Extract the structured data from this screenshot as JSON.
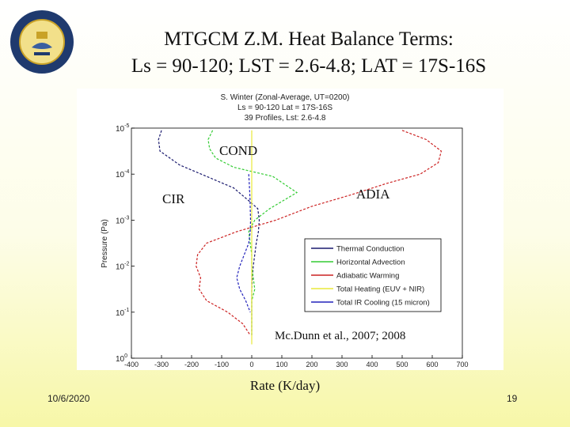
{
  "slide": {
    "title_line1": "MTGCM Z.M. Heat Balance Terms:",
    "title_line2": "Ls = 90-120; LST = 2.6-4.8; LAT = 17S-16S",
    "date": "10/6/2020",
    "page_number": "19",
    "seal_text": "THE UNIVERSITY OF MICHIGAN",
    "seal_year": "1817"
  },
  "chart_data": {
    "type": "line",
    "header_lines": [
      "S. Winter (Zonal-Average, UT=0200)",
      "Ls = 90-120      Lat = 17S-16S",
      "39 Profiles, Lst: 2.6-4.8"
    ],
    "xlabel": "Rate (K/day)",
    "ylabel": "Pressure (Pa)",
    "xlim": [
      -400,
      700
    ],
    "xticks": [
      "-400",
      "-300",
      "-200",
      "-100",
      "0",
      "100",
      "200",
      "300",
      "400",
      "500",
      "600",
      "700"
    ],
    "ylim_log10": [
      0,
      -5
    ],
    "yticks": [
      {
        "base": "10",
        "exp": "-5"
      },
      {
        "base": "10",
        "exp": "-4"
      },
      {
        "base": "10",
        "exp": "-3"
      },
      {
        "base": "10",
        "exp": "-2"
      },
      {
        "base": "10",
        "exp": "-1"
      },
      {
        "base": "10",
        "exp": "0"
      }
    ],
    "annotations": {
      "cond": "COND",
      "adia": "ADIA",
      "cir": "CIR",
      "citation": "Mc.Dunn et al., 2007; 2008"
    },
    "series": [
      {
        "name": "Thermal Conduction",
        "color": "#1a1a6e",
        "x": [
          -300,
          -310,
          -305,
          -240,
          -150,
          -60,
          -15,
          20,
          25,
          22,
          15,
          10,
          5,
          2,
          0,
          0,
          0,
          0,
          0
        ],
        "y": [
          -4.95,
          -4.75,
          -4.5,
          -4.2,
          -3.95,
          -3.7,
          -3.45,
          -3.25,
          -3.0,
          -2.75,
          -2.5,
          -2.25,
          -2.0,
          -1.75,
          -1.5,
          -1.25,
          -1.0,
          -0.75,
          -0.5
        ]
      },
      {
        "name": "Horizontal Advection",
        "color": "#33cc33",
        "x": [
          -130,
          -145,
          -140,
          -120,
          -60,
          70,
          150,
          60,
          10,
          -10,
          -5,
          0,
          0,
          5,
          10,
          0,
          0,
          0,
          0
        ],
        "y": [
          -4.95,
          -4.75,
          -4.55,
          -4.35,
          -4.15,
          -3.95,
          -3.6,
          -3.25,
          -3.0,
          -2.75,
          -2.5,
          -2.25,
          -2.0,
          -1.75,
          -1.5,
          -1.25,
          -1.0,
          -0.75,
          -0.5
        ]
      },
      {
        "name": "Adiabatic Warming",
        "color": "#cc2222",
        "x": [
          500,
          580,
          630,
          620,
          560,
          450,
          330,
          200,
          80,
          -50,
          -150,
          -180,
          -185,
          -170,
          -175,
          -150,
          -80,
          -30,
          -5
        ],
        "y": [
          -4.95,
          -4.75,
          -4.5,
          -4.25,
          -4.0,
          -3.8,
          -3.55,
          -3.3,
          -3.0,
          -2.75,
          -2.5,
          -2.25,
          -2.0,
          -1.75,
          -1.5,
          -1.25,
          -1.0,
          -0.75,
          -0.5
        ]
      },
      {
        "name": "Total Heating (EUV + NIR)",
        "color": "#e8e83a",
        "x": [
          0,
          0,
          0,
          0,
          0,
          0,
          0,
          0,
          0,
          0,
          0,
          0
        ],
        "y": [
          -4.95,
          -4.5,
          -4.0,
          -3.5,
          -3.0,
          -2.5,
          -2.0,
          -1.5,
          -1.0,
          -0.75,
          -0.5,
          -0.3
        ]
      },
      {
        "name": "Total IR Cooling (15 micron)",
        "color": "#2222bb",
        "x": [
          -10,
          -8,
          -6,
          -5,
          -4,
          -5,
          -10,
          -25,
          -40,
          -50,
          -40,
          -20,
          -5
        ],
        "y": [
          -4.0,
          -3.75,
          -3.5,
          -3.25,
          -3.0,
          -2.75,
          -2.5,
          -2.25,
          -2.0,
          -1.75,
          -1.5,
          -1.25,
          -1.0
        ]
      }
    ]
  }
}
